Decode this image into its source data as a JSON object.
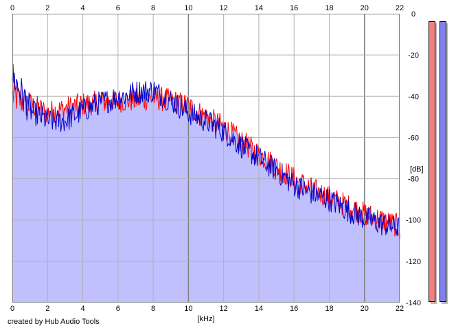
{
  "footer": {
    "credit": "created by Hub Audio Tools"
  },
  "chart_data": {
    "type": "area",
    "title": "",
    "xlabel": "[kHz]",
    "ylabel": "[dB]",
    "xlim": [
      0,
      22
    ],
    "ylim": [
      -140,
      0
    ],
    "x_ticks": [
      0,
      2,
      4,
      6,
      8,
      10,
      12,
      14,
      16,
      18,
      20,
      22
    ],
    "y_ticks": [
      0,
      -20,
      -40,
      -60,
      -80,
      -100,
      -120,
      -140
    ],
    "grid": true,
    "legend": "none",
    "colors": {
      "area_fill": "#c0c0ff",
      "left_channel": "#ff0000",
      "right_channel": "#0000cc",
      "grid": "#b0b0b0",
      "grid_major": "#808080",
      "meter_left": "#f08080",
      "meter_right": "#8080f0"
    },
    "series": [
      {
        "channel": "left",
        "color": "#ff0000",
        "x": [
          0,
          0.5,
          1,
          2,
          3,
          4,
          5,
          6,
          7,
          8,
          9,
          10,
          11,
          12,
          13,
          14,
          15,
          16,
          17,
          18,
          19,
          20,
          21,
          22
        ],
        "y": [
          -40,
          -42,
          -44,
          -48,
          -46,
          -44,
          -43,
          -42,
          -42,
          -41,
          -42,
          -45,
          -50,
          -55,
          -62,
          -68,
          -74,
          -80,
          -85,
          -89,
          -93,
          -97,
          -100,
          -103
        ]
      },
      {
        "channel": "right",
        "color": "#0000cc",
        "x": [
          0,
          0.5,
          1,
          2,
          3,
          4,
          5,
          6,
          7,
          8,
          9,
          10,
          11,
          12,
          13,
          14,
          15,
          16,
          17,
          18,
          19,
          20,
          21,
          22
        ],
        "y": [
          -30,
          -38,
          -47,
          -52,
          -52,
          -47,
          -43,
          -41,
          -38,
          -37,
          -42,
          -48,
          -52,
          -57,
          -64,
          -70,
          -76,
          -83,
          -87,
          -90,
          -95,
          -99,
          -102,
          -104
        ]
      }
    ],
    "level_meters": [
      {
        "channel": "left",
        "color": "#f08080",
        "level_db": 0
      },
      {
        "channel": "right",
        "color": "#8080f0",
        "level_db": 0
      }
    ]
  }
}
